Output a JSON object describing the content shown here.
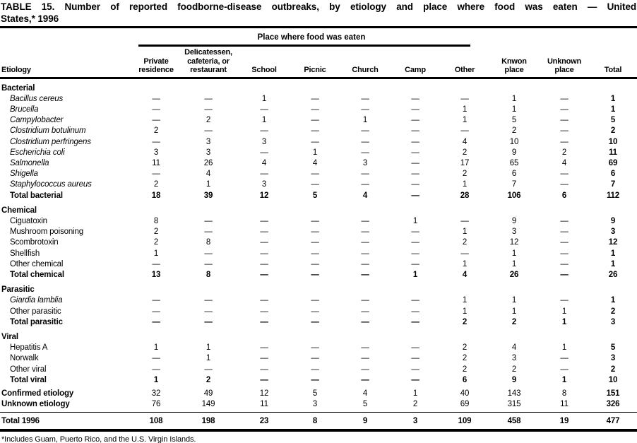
{
  "title_line1": "TABLE 15. Number of reported foodborne-disease outbreaks, by etiology and place where food was eaten — United",
  "title_line2": "States,* 1996",
  "footnote": "*Includes Guam, Puerto Rico, and the U.S. Virgin Islands.",
  "table": {
    "span_header": "Place where food was eaten",
    "columns": [
      "Etiology",
      "Private\nresidence",
      "Delicatessen,\ncafeteria, or\nrestaurant",
      "School",
      "Picnic",
      "Church",
      "Camp",
      "Other",
      "Knwon\nplace",
      "Unknown\nplace",
      "Total"
    ],
    "rows": [
      {
        "type": "section",
        "label": "Bacterial"
      },
      {
        "type": "item-italic",
        "label": "Bacillus cereus",
        "cells": [
          "—",
          "—",
          "1",
          "—",
          "—",
          "—",
          "—",
          "1",
          "—",
          "1"
        ]
      },
      {
        "type": "item-italic",
        "label": "Brucella",
        "cells": [
          "—",
          "—",
          "—",
          "—",
          "—",
          "—",
          "1",
          "1",
          "—",
          "1"
        ]
      },
      {
        "type": "item-italic",
        "label": "Campylobacter",
        "cells": [
          "—",
          "2",
          "1",
          "—",
          "1",
          "—",
          "1",
          "5",
          "—",
          "5"
        ]
      },
      {
        "type": "item-italic",
        "label": "Clostridium botulinum",
        "cells": [
          "2",
          "—",
          "—",
          "—",
          "—",
          "—",
          "—",
          "2",
          "—",
          "2"
        ]
      },
      {
        "type": "item-italic",
        "label": "Clostridium perfringens",
        "cells": [
          "—",
          "3",
          "3",
          "—",
          "—",
          "—",
          "4",
          "10",
          "—",
          "10"
        ]
      },
      {
        "type": "item-italic",
        "label": "Escherichia coli",
        "cells": [
          "3",
          "3",
          "—",
          "1",
          "—",
          "—",
          "2",
          "9",
          "2",
          "11"
        ]
      },
      {
        "type": "item-italic",
        "label": "Salmonella",
        "cells": [
          "11",
          "26",
          "4",
          "4",
          "3",
          "—",
          "17",
          "65",
          "4",
          "69"
        ]
      },
      {
        "type": "item-italic",
        "label": "Shigella",
        "cells": [
          "—",
          "4",
          "—",
          "—",
          "—",
          "—",
          "2",
          "6",
          "—",
          "6"
        ]
      },
      {
        "type": "item-italic",
        "label": "Staphylococcus aureus",
        "cells": [
          "2",
          "1",
          "3",
          "—",
          "—",
          "—",
          "1",
          "7",
          "—",
          "7"
        ]
      },
      {
        "type": "subtotal",
        "label": "Total bacterial",
        "cells": [
          "18",
          "39",
          "12",
          "5",
          "4",
          "—",
          "28",
          "106",
          "6",
          "112"
        ]
      },
      {
        "type": "section",
        "label": "Chemical"
      },
      {
        "type": "item",
        "label": "Ciguatoxin",
        "cells": [
          "8",
          "—",
          "—",
          "—",
          "—",
          "1",
          "—",
          "9",
          "—",
          "9"
        ]
      },
      {
        "type": "item",
        "label": "Mushroom poisoning",
        "cells": [
          "2",
          "—",
          "—",
          "—",
          "—",
          "—",
          "1",
          "3",
          "—",
          "3"
        ]
      },
      {
        "type": "item",
        "label": "Scombrotoxin",
        "cells": [
          "2",
          "8",
          "—",
          "—",
          "—",
          "—",
          "2",
          "12",
          "—",
          "12"
        ]
      },
      {
        "type": "item",
        "label": "Shellfish",
        "cells": [
          "1",
          "—",
          "—",
          "—",
          "—",
          "—",
          "—",
          "1",
          "—",
          "1"
        ]
      },
      {
        "type": "item",
        "label": "Other chemical",
        "cells": [
          "—",
          "—",
          "—",
          "—",
          "—",
          "—",
          "1",
          "1",
          "—",
          "1"
        ]
      },
      {
        "type": "subtotal",
        "label": "Total chemical",
        "cells": [
          "13",
          "8",
          "—",
          "—",
          "—",
          "1",
          "4",
          "26",
          "—",
          "26"
        ]
      },
      {
        "type": "section",
        "label": "Parasitic"
      },
      {
        "type": "item-italic",
        "label": "Giardia lamblia",
        "cells": [
          "—",
          "—",
          "—",
          "—",
          "—",
          "—",
          "1",
          "1",
          "—",
          "1"
        ]
      },
      {
        "type": "item",
        "label": "Other parasitic",
        "cells": [
          "—",
          "—",
          "—",
          "—",
          "—",
          "—",
          "1",
          "1",
          "1",
          "2"
        ]
      },
      {
        "type": "subtotal",
        "label": "Total parasitic",
        "cells": [
          "—",
          "—",
          "—",
          "—",
          "—",
          "—",
          "2",
          "2",
          "1",
          "3"
        ]
      },
      {
        "type": "section",
        "label": "Viral"
      },
      {
        "type": "item",
        "label": "Hepatitis A",
        "cells": [
          "1",
          "1",
          "—",
          "—",
          "—",
          "—",
          "2",
          "4",
          "1",
          "5"
        ]
      },
      {
        "type": "item",
        "label": "Norwalk",
        "cells": [
          "—",
          "1",
          "—",
          "—",
          "—",
          "—",
          "2",
          "3",
          "—",
          "3"
        ]
      },
      {
        "type": "item",
        "label": "Other viral",
        "cells": [
          "—",
          "—",
          "—",
          "—",
          "—",
          "—",
          "2",
          "2",
          "—",
          "2"
        ]
      },
      {
        "type": "subtotal",
        "label": "Total viral",
        "cells": [
          "1",
          "2",
          "—",
          "—",
          "—",
          "—",
          "6",
          "9",
          "1",
          "10"
        ]
      },
      {
        "type": "summary",
        "label": "Confirmed etiology",
        "cells": [
          "32",
          "49",
          "12",
          "5",
          "4",
          "1",
          "40",
          "143",
          "8",
          "151"
        ]
      },
      {
        "type": "summary",
        "label": "Unknown etiology",
        "cells": [
          "76",
          "149",
          "11",
          "3",
          "5",
          "2",
          "69",
          "315",
          "11",
          "326"
        ]
      },
      {
        "type": "grand",
        "label": "Total 1996",
        "cells": [
          "108",
          "198",
          "23",
          "8",
          "9",
          "3",
          "109",
          "458",
          "19",
          "477"
        ]
      }
    ]
  }
}
